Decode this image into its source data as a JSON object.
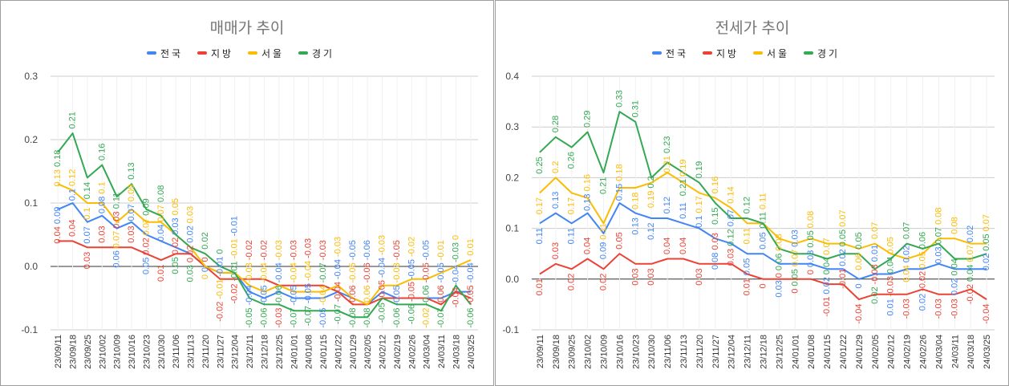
{
  "chart_data": [
    {
      "type": "line",
      "title": "매매가 추이",
      "legend_position": "top",
      "grid": true,
      "ylim": [
        -0.1,
        0.3
      ],
      "yticks": [
        "0.3",
        "0.2",
        "0.1",
        "0.0",
        "-0.1"
      ],
      "ytick_values": [
        0.3,
        0.2,
        0.1,
        0.0,
        -0.1
      ],
      "categories": [
        "23/09/11",
        "23/09/18",
        "23/09/25",
        "23/10/02",
        "23/10/09",
        "23/10/16",
        "23/10/23",
        "23/10/30",
        "23/11/06",
        "23/11/13",
        "23/11/20",
        "23/11/27",
        "23/12/04",
        "23/12/11",
        "23/12/18",
        "23/12/25",
        "24/01/01",
        "24/01/08",
        "24/01/15",
        "24/01/22",
        "24/01/29",
        "24/02/05",
        "24/02/12",
        "24/02/19",
        "24/02/26",
        "24/03/04",
        "24/03/11",
        "24/03/18",
        "24/03/25"
      ],
      "series": [
        {
          "name": "전국",
          "color": "#4285f4",
          "values": [
            0.09,
            0.1,
            0.07,
            0.08,
            0.06,
            0.07,
            0.05,
            0.04,
            0.03,
            0.02,
            0,
            -0.01,
            -0.01,
            -0.04,
            -0.05,
            -0.04,
            -0.05,
            -0.05,
            -0.05,
            -0.04,
            -0.05,
            -0.06,
            -0.04,
            -0.05,
            -0.05,
            -0.05,
            -0.05,
            -0.04,
            -0.04
          ]
        },
        {
          "name": "지방",
          "color": "#ea4335",
          "values": [
            0.04,
            0.04,
            0.03,
            0.03,
            0.03,
            0.03,
            0.02,
            0.01,
            0.02,
            0.02,
            0,
            -0.02,
            -0.02,
            -0.02,
            -0.02,
            -0.03,
            -0.03,
            -0.03,
            -0.03,
            -0.04,
            -0.06,
            -0.06,
            -0.05,
            -0.05,
            -0.05,
            -0.05,
            -0.06,
            -0.04,
            -0.05
          ]
        },
        {
          "name": "서울",
          "color": "#fbbc04",
          "values": [
            0.13,
            0.12,
            0.1,
            0.1,
            0.07,
            0.09,
            0.07,
            0.07,
            0.05,
            0.03,
            0,
            -0.01,
            -0.01,
            -0.03,
            -0.04,
            -0.03,
            -0.04,
            -0.04,
            -0.04,
            -0.03,
            -0.05,
            -0.06,
            -0.03,
            -0.03,
            -0.02,
            -0.02,
            -0.01,
            0,
            0.01
          ]
        },
        {
          "name": "경기",
          "color": "#34a853",
          "values": [
            0.18,
            0.21,
            0.14,
            0.16,
            0.11,
            0.13,
            0.09,
            0.08,
            0.05,
            0.03,
            0.02,
            0,
            -0.01,
            -0.05,
            -0.06,
            -0.06,
            -0.07,
            -0.07,
            -0.07,
            -0.07,
            -0.08,
            -0.08,
            -0.05,
            -0.06,
            -0.06,
            -0.06,
            -0.07,
            -0.03,
            -0.06
          ]
        }
      ]
    },
    {
      "type": "line",
      "title": "전세가 추이",
      "legend_position": "top",
      "grid": true,
      "ylim": [
        -0.1,
        0.4
      ],
      "yticks": [
        "0.4",
        "0.3",
        "0.2",
        "0.1",
        "0.0",
        "-0.1"
      ],
      "ytick_values": [
        0.4,
        0.3,
        0.2,
        0.1,
        0.0,
        -0.1
      ],
      "categories": [
        "23/09/11",
        "23/09/18",
        "23/09/25",
        "23/10/02",
        "23/10/09",
        "23/10/16",
        "23/10/23",
        "23/10/30",
        "23/11/06",
        "23/11/13",
        "23/11/20",
        "23/11/27",
        "23/12/04",
        "23/12/11",
        "23/12/18",
        "23/12/25",
        "24/01/01",
        "24/01/08",
        "24/01/15",
        "24/01/22",
        "24/01/29",
        "24/02/05",
        "24/02/12",
        "24/02/19",
        "24/02/26",
        "24/03/04",
        "24/03/11",
        "24/03/18",
        "24/03/25"
      ],
      "series": [
        {
          "name": "전국",
          "color": "#4285f4",
          "values": [
            0.11,
            0.13,
            0.11,
            0.13,
            0.09,
            0.15,
            0.13,
            0.12,
            0.12,
            0.11,
            0.1,
            0.08,
            0.07,
            0.05,
            0.05,
            0.03,
            0.03,
            0.03,
            0.02,
            0.02,
            0,
            0.01,
            0.01,
            0.02,
            0.02,
            0.03,
            0.02,
            0.02,
            0.02
          ]
        },
        {
          "name": "지방",
          "color": "#ea4335",
          "values": [
            0.01,
            0.03,
            0.02,
            0.04,
            0.02,
            0.05,
            0.03,
            0.03,
            0.04,
            0.04,
            0.03,
            0.03,
            0.03,
            0.01,
            0,
            0,
            0,
            0,
            -0.01,
            -0.01,
            -0.04,
            -0.03,
            -0.03,
            -0.03,
            -0.02,
            -0.03,
            -0.03,
            -0.02,
            -0.04
          ]
        },
        {
          "name": "서울",
          "color": "#fbbc04",
          "values": [
            0.17,
            0.2,
            0.17,
            0.16,
            0.11,
            0.18,
            0.18,
            0.19,
            0.21,
            0.19,
            0.17,
            0.16,
            0.14,
            0.11,
            0.11,
            0.08,
            0.07,
            0.08,
            0.07,
            0.07,
            0.06,
            0.07,
            0.05,
            0.04,
            0.05,
            0.08,
            0.08,
            0.07,
            0.07
          ]
        },
        {
          "name": "경기",
          "color": "#34a853",
          "values": [
            0.25,
            0.28,
            0.26,
            0.29,
            0.21,
            0.33,
            0.31,
            0.2,
            0.23,
            0.21,
            0.19,
            0.15,
            0.12,
            0.12,
            0.11,
            0.06,
            0.05,
            0.05,
            0.04,
            0.05,
            0.05,
            0.02,
            0.04,
            0.07,
            0.06,
            0.07,
            0.04,
            0.04,
            0.05
          ]
        }
      ]
    }
  ]
}
